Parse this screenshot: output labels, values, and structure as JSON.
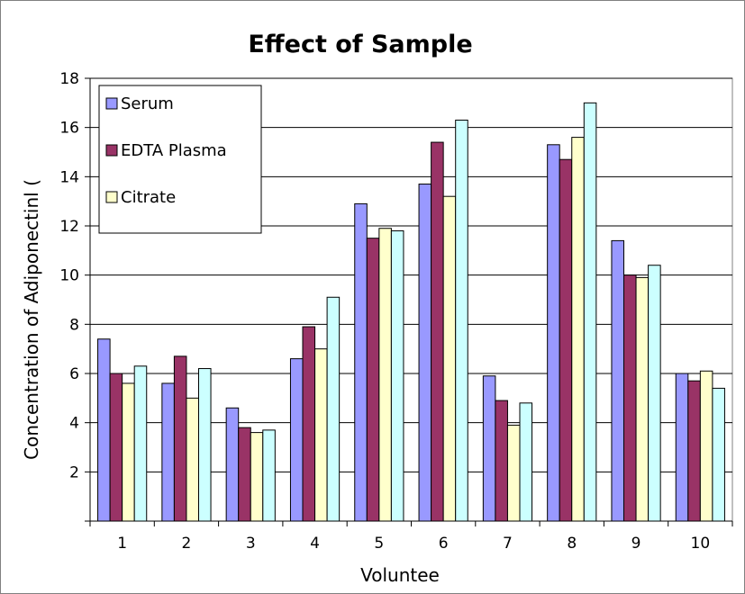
{
  "chart_data": {
    "type": "bar",
    "title": "Effect of Sample",
    "xlabel": "Voluntee",
    "ylabel": "Concentration of Adiponectinl (",
    "categories": [
      "1",
      "2",
      "3",
      "4",
      "5",
      "6",
      "7",
      "8",
      "9",
      "10"
    ],
    "ylim": [
      0,
      18
    ],
    "yticks": [
      "2",
      "4",
      "6",
      "8",
      "10",
      "12",
      "14",
      "16",
      "18"
    ],
    "grid": true,
    "legend_position": "top-left",
    "series": [
      {
        "name": "Serum",
        "color": "#9999ff",
        "values": [
          7.4,
          5.6,
          4.6,
          6.6,
          12.9,
          13.7,
          5.9,
          15.3,
          11.4,
          6.0
        ]
      },
      {
        "name": "EDTA Plasma",
        "color": "#993366",
        "values": [
          6.0,
          6.7,
          3.8,
          7.9,
          11.5,
          15.4,
          4.9,
          14.7,
          10.0,
          5.7
        ]
      },
      {
        "name": "Citrate",
        "color": "#ffffcc",
        "values": [
          5.6,
          5.0,
          3.6,
          7.0,
          11.9,
          13.2,
          3.9,
          15.6,
          9.9,
          6.1
        ]
      },
      {
        "name": "",
        "color": "#ccffff",
        "values": [
          6.3,
          6.2,
          3.7,
          9.1,
          11.8,
          16.3,
          4.8,
          17.0,
          10.4,
          5.4
        ]
      }
    ]
  }
}
